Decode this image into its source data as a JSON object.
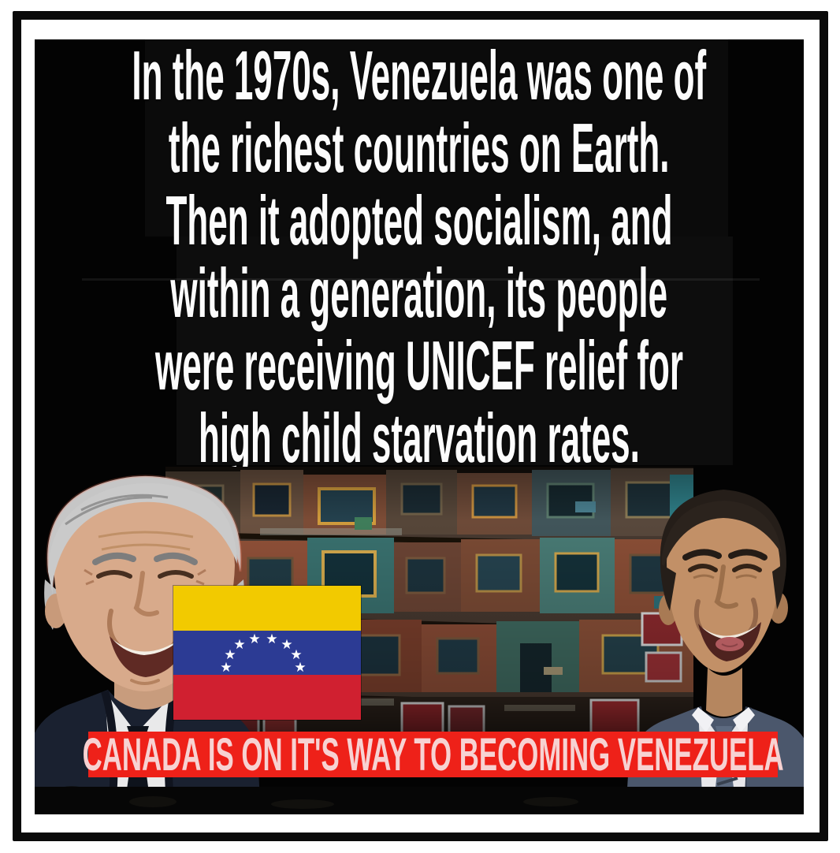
{
  "meme": {
    "headline_lines": [
      "In the 1970s, Venezuela was one of",
      "the richest countries on Earth.",
      "Then it adopted socialism, and",
      "within a generation, its people",
      "were receiving UNICEF relief for",
      "high child starvation rates."
    ],
    "caption": "CANADA IS ON IT'S WAY TO BECOMING VENEZUELA",
    "colors": {
      "page_background": "#ffffff",
      "frame": "#0a0a0a",
      "canvas_black": "#030303",
      "headline_text": "#fcfcfc",
      "caption_background": "#ee2119",
      "caption_text": "#f7d2d2",
      "flag_yellow": "#f2ca00",
      "flag_blue": "#2c3b94",
      "flag_red": "#d02030"
    },
    "flag": {
      "name": "venezuela-flag",
      "star_count": 8
    },
    "figures": {
      "left": "smiling gray-haired man in dark suit with microphones",
      "right": "smiling dark-haired man in gray-blue suit and striped tie"
    },
    "background_photo": "hillside shantytown houses"
  }
}
